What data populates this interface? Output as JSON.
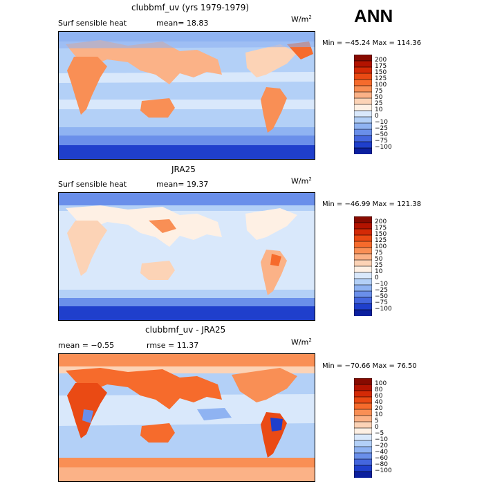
{
  "season": "ANN",
  "panels": [
    {
      "id": "model",
      "title": "clubbmf_uv (yrs 1979-1979)",
      "left_text": "Surf sensible heat",
      "center_text": "mean=   18.83",
      "units": "W/m",
      "units_sup": "2",
      "minmax": "Min = −45.24  Max = 114.36",
      "colorbar": {
        "labels": [
          "200",
          "175",
          "150",
          "125",
          "100",
          "75",
          "50",
          "25",
          "10",
          "0",
          "−10",
          "−25",
          "−50",
          "−75",
          "−100"
        ],
        "colors": [
          "#870a00",
          "#b31300",
          "#d42a06",
          "#ea4a14",
          "#f66b2c",
          "#f98f55",
          "#fbb287",
          "#fcd3b6",
          "#fef0e4",
          "#d9e8fb",
          "#b3d0f7",
          "#8fb3f2",
          "#6a8fea",
          "#4466de",
          "#1f3fcc",
          "#0b1f9e"
        ]
      },
      "chart_data": {
        "type": "heatmap",
        "title": "clubbmf_uv (yrs 1979-1979)",
        "variable": "Surf sensible heat",
        "mean": 18.83,
        "min": -45.24,
        "max": 114.36,
        "units": "W/m2",
        "levels": [
          -100,
          -75,
          -50,
          -25,
          -10,
          0,
          10,
          25,
          50,
          75,
          100,
          125,
          150,
          175,
          200
        ]
      }
    },
    {
      "id": "obs",
      "title": "JRA25",
      "left_text": "Surf sensible heat",
      "center_text": "mean=   19.37",
      "units": "W/m",
      "units_sup": "2",
      "minmax": "Min = −46.99  Max = 121.38",
      "colorbar": {
        "labels": [
          "200",
          "175",
          "150",
          "125",
          "100",
          "75",
          "50",
          "25",
          "10",
          "0",
          "−10",
          "−25",
          "−50",
          "−75",
          "−100"
        ],
        "colors": [
          "#870a00",
          "#b31300",
          "#d42a06",
          "#ea4a14",
          "#f66b2c",
          "#f98f55",
          "#fbb287",
          "#fcd3b6",
          "#fef0e4",
          "#d9e8fb",
          "#b3d0f7",
          "#8fb3f2",
          "#6a8fea",
          "#4466de",
          "#1f3fcc",
          "#0b1f9e"
        ]
      },
      "chart_data": {
        "type": "heatmap",
        "title": "JRA25",
        "variable": "Surf sensible heat",
        "mean": 19.37,
        "min": -46.99,
        "max": 121.38,
        "units": "W/m2",
        "levels": [
          -100,
          -75,
          -50,
          -25,
          -10,
          0,
          10,
          25,
          50,
          75,
          100,
          125,
          150,
          175,
          200
        ]
      }
    },
    {
      "id": "diff",
      "title": "clubbmf_uv - JRA25",
      "left_text": "mean =   −0.55",
      "center_text": "rmse =   11.37",
      "units": "W/m",
      "units_sup": "2",
      "minmax": "Min = −70.66  Max =   76.50",
      "colorbar": {
        "labels": [
          "100",
          "80",
          "60",
          "40",
          "20",
          "10",
          "5",
          "0",
          "−5",
          "−10",
          "−20",
          "−40",
          "−60",
          "−80",
          "−100"
        ],
        "colors": [
          "#870a00",
          "#b31300",
          "#d42a06",
          "#ea4a14",
          "#f66b2c",
          "#f98f55",
          "#fbb287",
          "#fcd3b6",
          "#fef0e4",
          "#d9e8fb",
          "#b3d0f7",
          "#8fb3f2",
          "#6a8fea",
          "#4466de",
          "#1f3fcc",
          "#0b1f9e"
        ]
      },
      "chart_data": {
        "type": "heatmap",
        "title": "clubbmf_uv - JRA25",
        "mean": -0.55,
        "rmse": 11.37,
        "min": -70.66,
        "max": 76.5,
        "units": "W/m2",
        "levels": [
          -100,
          -80,
          -60,
          -40,
          -20,
          -10,
          -5,
          0,
          5,
          10,
          20,
          40,
          60,
          80,
          100
        ]
      }
    }
  ]
}
